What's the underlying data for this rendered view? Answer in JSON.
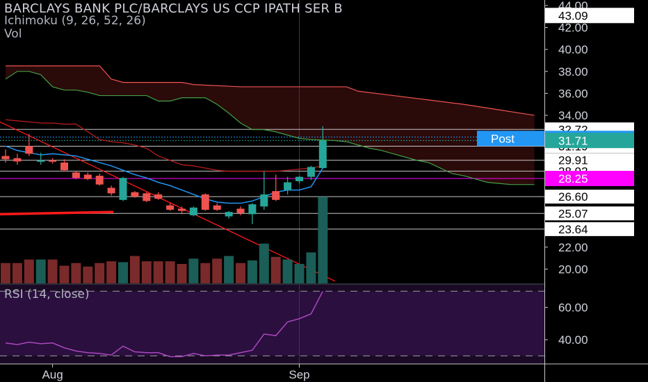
{
  "header": {
    "title": "BARCLAYS BANK PLC/BARCLAYS US CCP IPATH SER B",
    "indicator_ichimoku": "Ichimoku (9, 26, 52, 26)",
    "indicator_vol": "Vol"
  },
  "rsi_panel": {
    "label": "RSI (14, close)"
  },
  "colors": {
    "background": "#000000",
    "up_candle": "#26a69a",
    "down_candle": "#ef5350",
    "conversion_line": "#2196f3",
    "base_line": "#b71c1c",
    "lead_a": "#43a047",
    "lead_b": "#ef5350",
    "rsi_line": "#ab47bc",
    "magenta_tag": "#ff00ff",
    "blue_tag": "#2196f3"
  },
  "chart_data": {
    "type": "candlestick",
    "price_axis": {
      "ylim": [
        18.7,
        44.5
      ],
      "ticks": [
        "20.00",
        "22.00",
        "34.00",
        "36.00",
        "38.00",
        "40.00",
        "42.00",
        "44.00"
      ]
    },
    "price_levels": [
      "32.72",
      "31.19",
      "29.91",
      "28.92",
      "26.60",
      "25.07",
      "23.64"
    ],
    "price_tags": [
      {
        "label": "Post",
        "value": "31.90",
        "style": "blue",
        "price": 31.9
      },
      {
        "value": "43.09",
        "style": "white",
        "price": 43.09
      },
      {
        "value": "31.71",
        "style": "teal",
        "price": 31.71
      },
      {
        "value": "28.25",
        "style": "magenta",
        "price": 28.25
      }
    ],
    "x_labels": [
      {
        "label": "Aug",
        "index": 4
      },
      {
        "label": "Sep",
        "index": 25
      }
    ],
    "candles": [
      {
        "o": 30.3,
        "h": 30.9,
        "l": 29.7,
        "c": 30.0
      },
      {
        "o": 30.1,
        "h": 30.5,
        "l": 29.5,
        "c": 29.8
      },
      {
        "o": 31.2,
        "h": 32.3,
        "l": 30.3,
        "c": 30.5
      },
      {
        "o": 29.8,
        "h": 30.6,
        "l": 29.5,
        "c": 29.9
      },
      {
        "o": 29.9,
        "h": 30.1,
        "l": 29.6,
        "c": 29.8
      },
      {
        "o": 29.7,
        "h": 30.0,
        "l": 28.9,
        "c": 29.0
      },
      {
        "o": 28.8,
        "h": 28.9,
        "l": 28.2,
        "c": 28.3
      },
      {
        "o": 28.6,
        "h": 28.8,
        "l": 28.1,
        "c": 28.2
      },
      {
        "o": 28.5,
        "h": 28.7,
        "l": 27.6,
        "c": 27.7
      },
      {
        "o": 27.4,
        "h": 27.6,
        "l": 26.7,
        "c": 26.9
      },
      {
        "o": 26.3,
        "h": 28.4,
        "l": 26.2,
        "c": 28.3
      },
      {
        "o": 27.0,
        "h": 27.1,
        "l": 26.5,
        "c": 26.6
      },
      {
        "o": 26.9,
        "h": 27.0,
        "l": 26.1,
        "c": 26.2
      },
      {
        "o": 26.8,
        "h": 27.0,
        "l": 26.3,
        "c": 26.4
      },
      {
        "o": 25.8,
        "h": 26.0,
        "l": 25.3,
        "c": 25.4
      },
      {
        "o": 25.5,
        "h": 25.7,
        "l": 25.0,
        "c": 25.3
      },
      {
        "o": 24.9,
        "h": 25.7,
        "l": 24.8,
        "c": 25.6
      },
      {
        "o": 26.8,
        "h": 26.9,
        "l": 25.3,
        "c": 25.4
      },
      {
        "o": 25.8,
        "h": 26.0,
        "l": 25.3,
        "c": 25.4
      },
      {
        "o": 24.8,
        "h": 25.3,
        "l": 24.6,
        "c": 25.2
      },
      {
        "o": 25.5,
        "h": 25.7,
        "l": 24.9,
        "c": 25.1
      },
      {
        "o": 25.0,
        "h": 26.0,
        "l": 24.1,
        "c": 25.9
      },
      {
        "o": 25.7,
        "h": 28.9,
        "l": 25.4,
        "c": 26.8
      },
      {
        "o": 27.1,
        "h": 28.6,
        "l": 26.2,
        "c": 26.3
      },
      {
        "o": 27.2,
        "h": 28.4,
        "l": 26.8,
        "c": 27.9
      },
      {
        "o": 28.0,
        "h": 28.5,
        "l": 27.8,
        "c": 28.4
      },
      {
        "o": 28.4,
        "h": 29.4,
        "l": 28.1,
        "c": 29.3
      },
      {
        "o": 29.2,
        "h": 33.0,
        "l": 29.2,
        "c": 31.71
      }
    ],
    "volume": {
      "ylim": [
        0,
        11
      ],
      "values": [
        2.3,
        2.3,
        2.7,
        2.7,
        2.7,
        2.0,
        2.3,
        1.9,
        2.3,
        2.5,
        2.4,
        3.1,
        2.5,
        2.5,
        2.5,
        2.2,
        2.8,
        2.3,
        2.8,
        3.1,
        2.3,
        2.6,
        4.5,
        3.0,
        2.7,
        2.2,
        3.5,
        9.8
      ]
    },
    "ichimoku": {
      "conversion": [
        31.2,
        30.8,
        30.6,
        30.4,
        30.5,
        30.4,
        30.3,
        30.0,
        29.7,
        29.4,
        29.0,
        28.6,
        28.3,
        27.9,
        27.6,
        27.2,
        26.8,
        26.4,
        26.1,
        26.0,
        26.0,
        26.2,
        26.6,
        27.0,
        27.2,
        27.2,
        27.5,
        29.2
      ],
      "base": [
        33.6,
        33.5,
        33.4,
        33.3,
        33.3,
        33.2,
        33.2,
        32.5,
        31.8,
        31.6,
        31.5,
        31.3,
        31.0,
        30.3,
        29.9,
        29.5,
        29.4,
        29.2,
        29.0,
        28.9,
        28.9,
        28.9,
        28.9,
        28.9,
        29.0,
        29.1,
        29.2,
        29.4
      ],
      "lead_a": [
        {
          "i": 0,
          "v": 37.3
        },
        {
          "i": 1,
          "v": 38.0
        },
        {
          "i": 2,
          "v": 38.0
        },
        {
          "i": 3,
          "v": 37.7
        },
        {
          "i": 4,
          "v": 36.6
        },
        {
          "i": 5,
          "v": 36.3
        },
        {
          "i": 6,
          "v": 36.3
        },
        {
          "i": 7,
          "v": 36.1
        },
        {
          "i": 8,
          "v": 35.8
        },
        {
          "i": 9,
          "v": 35.8
        },
        {
          "i": 10,
          "v": 35.8
        },
        {
          "i": 11,
          "v": 35.8
        },
        {
          "i": 12,
          "v": 35.8
        },
        {
          "i": 13,
          "v": 35.3
        },
        {
          "i": 14,
          "v": 35.3
        },
        {
          "i": 15,
          "v": 35.6
        },
        {
          "i": 16,
          "v": 35.6
        },
        {
          "i": 17,
          "v": 35.6
        },
        {
          "i": 18,
          "v": 35.0
        },
        {
          "i": 19,
          "v": 34.2
        },
        {
          "i": 20,
          "v": 33.3
        },
        {
          "i": 21,
          "v": 32.7
        },
        {
          "i": 22,
          "v": 32.7
        },
        {
          "i": 23,
          "v": 32.5
        },
        {
          "i": 24,
          "v": 32.2
        },
        {
          "i": 25,
          "v": 31.9
        },
        {
          "i": 26,
          "v": 31.8
        },
        {
          "i": 27,
          "v": 31.75
        },
        {
          "i": 28,
          "v": 31.7
        },
        {
          "i": 29,
          "v": 31.6
        },
        {
          "i": 30,
          "v": 31.3
        },
        {
          "i": 31,
          "v": 31.0
        },
        {
          "i": 32,
          "v": 30.8
        },
        {
          "i": 33,
          "v": 30.5
        },
        {
          "i": 34,
          "v": 30.2
        },
        {
          "i": 35,
          "v": 29.9
        },
        {
          "i": 36,
          "v": 29.7
        },
        {
          "i": 37,
          "v": 29.2
        },
        {
          "i": 38,
          "v": 28.7
        },
        {
          "i": 39,
          "v": 28.5
        },
        {
          "i": 40,
          "v": 28.2
        },
        {
          "i": 41,
          "v": 27.9
        },
        {
          "i": 42,
          "v": 27.8
        },
        {
          "i": 43,
          "v": 27.7
        },
        {
          "i": 44,
          "v": 27.7
        },
        {
          "i": 45,
          "v": 27.7
        }
      ],
      "lead_b": [
        {
          "i": 0,
          "v": 38.5
        },
        {
          "i": 8,
          "v": 38.5
        },
        {
          "i": 9,
          "v": 37.3
        },
        {
          "i": 10,
          "v": 37.0
        },
        {
          "i": 15,
          "v": 37.0
        },
        {
          "i": 16,
          "v": 36.8
        },
        {
          "i": 20,
          "v": 36.6
        },
        {
          "i": 25,
          "v": 36.6
        },
        {
          "i": 29,
          "v": 36.6
        },
        {
          "i": 30,
          "v": 36.2
        },
        {
          "i": 33,
          "v": 35.8
        },
        {
          "i": 36,
          "v": 35.4
        },
        {
          "i": 39,
          "v": 35.0
        },
        {
          "i": 42,
          "v": 34.5
        },
        {
          "i": 45,
          "v": 34.0
        }
      ]
    },
    "rsi": {
      "ylim": [
        25,
        74
      ],
      "ticks": [
        "60.00",
        "40.00"
      ],
      "upper_band": 70,
      "lower_band": 30,
      "values": [
        38.0,
        37.0,
        38.5,
        37.5,
        38.0,
        35.0,
        33.0,
        32.0,
        31.5,
        30.5,
        36.0,
        32.5,
        32.0,
        32.0,
        29.5,
        29.5,
        31.5,
        30.0,
        30.5,
        30.5,
        32.0,
        33.5,
        43.5,
        42.5,
        51.0,
        53.0,
        56.0,
        70.0
      ]
    }
  }
}
